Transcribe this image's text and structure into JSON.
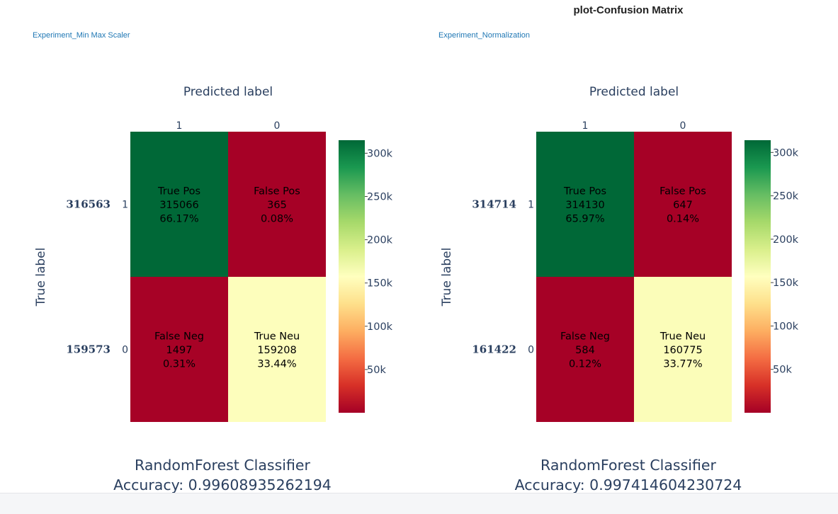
{
  "page": {
    "title": "plot-Confusion Matrix"
  },
  "colorscale": [
    "#a50026",
    "#d73027",
    "#f46d43",
    "#fdae61",
    "#fee08b",
    "#ffffbf",
    "#d9ef8b",
    "#a6d96a",
    "#66bd63",
    "#1a9850",
    "#006837"
  ],
  "chart_data": [
    {
      "type": "heatmap",
      "experiment_label": "Experiment_Min Max Scaler",
      "xaxis_title": "Predicted label",
      "yaxis_title": "True label",
      "x_categories": [
        "1",
        "0"
      ],
      "y_categories": [
        "1",
        "0"
      ],
      "row_totals": [
        "316563",
        "159573"
      ],
      "cells": [
        [
          {
            "name": "True Pos",
            "count": 315066,
            "pct": "66.17%"
          },
          {
            "name": "False Pos",
            "count": 365,
            "pct": "0.08%"
          }
        ],
        [
          {
            "name": "False Neg",
            "count": 1497,
            "pct": "0.31%"
          },
          {
            "name": "True Neu",
            "count": 159208,
            "pct": "33.44%"
          }
        ]
      ],
      "colorbar": {
        "range": [
          0,
          315066
        ],
        "ticks": [
          50000,
          100000,
          150000,
          200000,
          250000,
          300000
        ],
        "tick_labels": [
          "50k",
          "100k",
          "150k",
          "200k",
          "250k",
          "300k"
        ]
      },
      "caption_model": "RandomForest Classifier",
      "caption_accuracy": "Accuracy: 0.99608935262194"
    },
    {
      "type": "heatmap",
      "experiment_label": "Experiment_Normalization",
      "xaxis_title": "Predicted label",
      "yaxis_title": "True label",
      "x_categories": [
        "1",
        "0"
      ],
      "y_categories": [
        "1",
        "0"
      ],
      "row_totals": [
        "314714",
        "161422"
      ],
      "cells": [
        [
          {
            "name": "True Pos",
            "count": 314130,
            "pct": "65.97%"
          },
          {
            "name": "False Pos",
            "count": 647,
            "pct": "0.14%"
          }
        ],
        [
          {
            "name": "False Neg",
            "count": 584,
            "pct": "0.12%"
          },
          {
            "name": "True Neu",
            "count": 160775,
            "pct": "33.77%"
          }
        ]
      ],
      "colorbar": {
        "range": [
          0,
          314130
        ],
        "ticks": [
          50000,
          100000,
          150000,
          200000,
          250000,
          300000
        ],
        "tick_labels": [
          "50k",
          "100k",
          "150k",
          "200k",
          "250k",
          "300k"
        ]
      },
      "caption_model": "RandomForest Classifier",
      "caption_accuracy": "Accuracy: 0.997414604230724"
    }
  ]
}
